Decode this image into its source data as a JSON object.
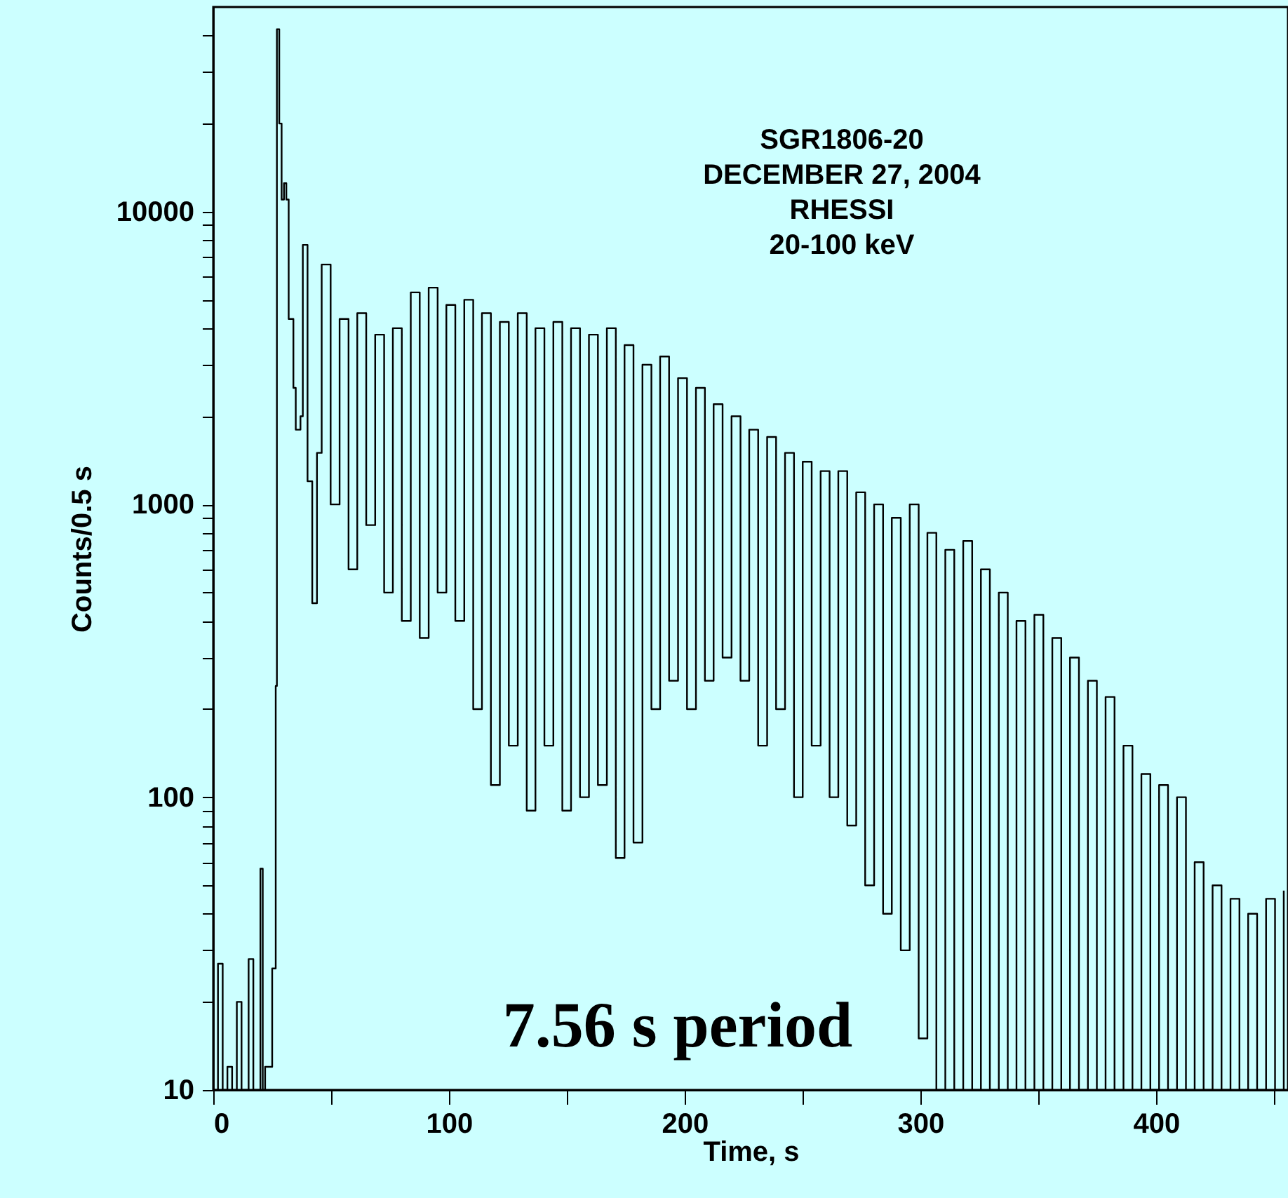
{
  "chart_data": {
    "type": "step",
    "xlabel": "Time, s",
    "ylabel": "Counts/0.5 s",
    "annotations": [
      "SGR1806-20",
      "DECEMBER 27, 2004",
      "RHESSI",
      "20-100 keV",
      "7.56 s period"
    ],
    "log": "y",
    "marker": "none",
    "line_style": "solid",
    "xlim": [
      0,
      456
    ],
    "ylim": [
      10,
      50000
    ],
    "xticks": [
      0,
      {
        "value": 50,
        "label": null
      },
      100,
      {
        "value": 150,
        "label": null
      },
      200,
      {
        "value": 250,
        "label": null
      },
      300,
      {
        "value": 350,
        "label": null
      },
      400,
      {
        "value": 450,
        "label": null
      }
    ],
    "yticks": [
      10,
      {
        "value": 20,
        "label": null
      },
      {
        "value": 30,
        "label": null
      },
      {
        "value": 40,
        "label": null
      },
      {
        "value": 50,
        "label": null
      },
      {
        "value": 60,
        "label": null
      },
      {
        "value": 70,
        "label": null
      },
      {
        "value": 80,
        "label": null
      },
      {
        "value": 90,
        "label": null
      },
      100,
      {
        "value": 200,
        "label": null
      },
      {
        "value": 300,
        "label": null
      },
      {
        "value": 400,
        "label": null
      },
      {
        "value": 500,
        "label": null
      },
      {
        "value": 600,
        "label": null
      },
      {
        "value": 700,
        "label": null
      },
      {
        "value": 800,
        "label": null
      },
      {
        "value": 900,
        "label": null
      },
      1000,
      {
        "value": 2000,
        "label": null
      },
      {
        "value": 3000,
        "label": null
      },
      {
        "value": 4000,
        "label": null
      },
      {
        "value": 5000,
        "label": null
      },
      {
        "value": 6000,
        "label": null
      },
      {
        "value": 7000,
        "label": null
      },
      {
        "value": 8000,
        "label": null
      },
      {
        "value": 9000,
        "label": null
      },
      10000,
      {
        "value": 20000,
        "label": null
      },
      {
        "value": 30000,
        "label": null
      },
      {
        "value": 40000,
        "label": null
      }
    ],
    "x": [
      0,
      2,
      4,
      6,
      8,
      10,
      12,
      15,
      17,
      20,
      21,
      22,
      25,
      26.5,
      27,
      28,
      29,
      30,
      31,
      32,
      34,
      35,
      37,
      38,
      40,
      42,
      44,
      46.0,
      49.8,
      53.6,
      57.4,
      61.1,
      64.9,
      68.7,
      72.5,
      76.2,
      80.0,
      83.8,
      87.6,
      91.4,
      95.2,
      98.9,
      102.7,
      106.5,
      110.3,
      114.0,
      117.8,
      121.6,
      125.4,
      129.2,
      133.0,
      136.7,
      140.5,
      144.3,
      148.1,
      151.8,
      155.6,
      159.4,
      163.2,
      167.0,
      170.8,
      174.5,
      178.3,
      182.1,
      185.9,
      189.6,
      193.4,
      197.2,
      201.0,
      204.8,
      208.6,
      212.3,
      216.1,
      219.9,
      223.7,
      227.4,
      231.2,
      235.0,
      238.8,
      242.6,
      246.4,
      250.1,
      253.9,
      257.7,
      261.5,
      265.2,
      269.0,
      272.8,
      276.6,
      280.4,
      284.2,
      287.9,
      291.7,
      295.5,
      299.3,
      303.0,
      306.8,
      310.6,
      314.4,
      318.2,
      322.0,
      325.7,
      329.5,
      333.3,
      337.1,
      340.8,
      344.6,
      348.4,
      352.2,
      356.0,
      359.8,
      363.5,
      367.3,
      371.1,
      374.9,
      378.6,
      382.4,
      386.2,
      390.0,
      393.8,
      397.6,
      401.3,
      405.1,
      408.9,
      412.7,
      416.4,
      420.2,
      424.0,
      427.8,
      431.6,
      435.4,
      439.1,
      442.9,
      446.7,
      450.5,
      454.2
    ],
    "series": [
      {
        "color": "#000000",
        "values": [
          10,
          27,
          10,
          12,
          10,
          20,
          10,
          28,
          10,
          57,
          10,
          12,
          26,
          240,
          42000,
          20000,
          11000,
          12500,
          11000,
          4300,
          2500,
          1800,
          2000,
          7700,
          1200,
          460,
          1500,
          6600,
          1000,
          4300,
          600,
          4500,
          850,
          3800,
          500,
          4000,
          400,
          5300,
          350,
          5500,
          500,
          4800,
          400,
          5000,
          200,
          4500,
          110,
          4200,
          150,
          4500,
          90,
          4000,
          150,
          4200,
          90,
          4000,
          100,
          3800,
          110,
          4000,
          62,
          3500,
          70,
          3000,
          200,
          3200,
          250,
          2700,
          200,
          2500,
          250,
          2200,
          300,
          2000,
          250,
          1800,
          150,
          1700,
          200,
          1500,
          100,
          1400,
          150,
          1300,
          100,
          1300,
          80,
          1100,
          50,
          1000,
          40,
          900,
          30,
          1000,
          15,
          800,
          10,
          700,
          10,
          750,
          10,
          600,
          10,
          500,
          10,
          400,
          10,
          420,
          10,
          350,
          10,
          300,
          10,
          250,
          10,
          220,
          10,
          150,
          10,
          120,
          10,
          110,
          10,
          100,
          10,
          60,
          10,
          50,
          10,
          45,
          10,
          40,
          10,
          45,
          10,
          48
        ]
      }
    ]
  }
}
